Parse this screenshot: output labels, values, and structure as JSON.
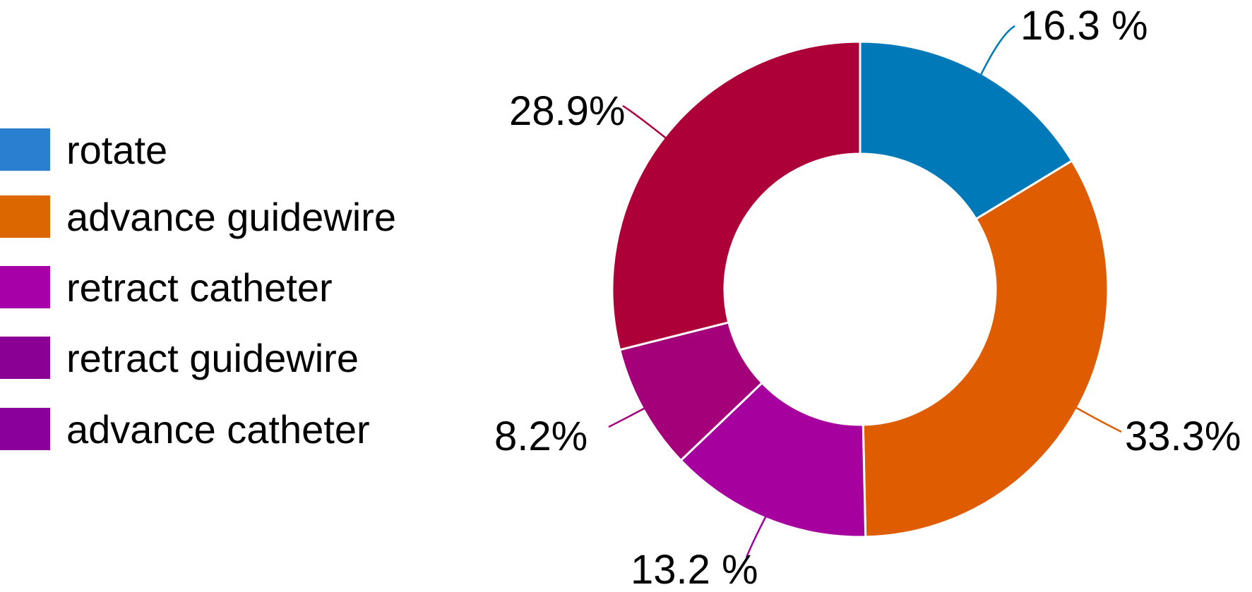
{
  "chart_data": {
    "type": "pie",
    "donut": true,
    "title": "",
    "legend_position": "left",
    "series": [
      {
        "name": "rotate",
        "value": 16.3,
        "label": "16.3 %",
        "color": "#0079b8",
        "legend_color": "#2b7fd1"
      },
      {
        "name": "advance guidewire",
        "value": 33.3,
        "label": "33.3%",
        "color": "#df5c00",
        "legend_color": "#dc6700"
      },
      {
        "name": "retract catheter",
        "value": 13.2,
        "label": "13.2 %",
        "color": "#a6009e",
        "legend_color": "#a800a8"
      },
      {
        "name": "retract guidewire",
        "value": 8.2,
        "label": "8.2%",
        "color": "#a3007a",
        "legend_color": "#8b0094"
      },
      {
        "name": "advance catheter",
        "value": 28.9,
        "label": "28.9%",
        "color": "#ae0038",
        "legend_color": "#880099"
      }
    ],
    "slice_order": [
      0,
      1,
      2,
      3,
      4
    ],
    "legend_order": [
      0,
      1,
      2,
      3,
      4
    ]
  }
}
